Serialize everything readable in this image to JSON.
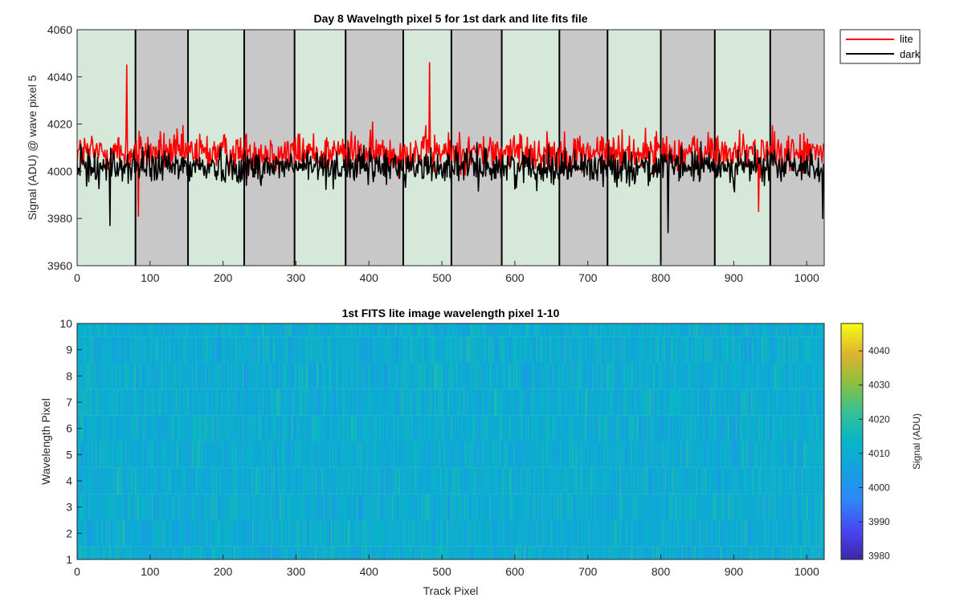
{
  "chart_data": [
    {
      "type": "line",
      "title": "Day 8 Wavelngth pixel 5 for 1st dark and lite fits file",
      "xlabel": "",
      "ylabel": "Signal (ADU) @ wave pixel 5",
      "xlim": [
        0,
        1024
      ],
      "ylim": [
        3960,
        4060
      ],
      "xticks": [
        0,
        100,
        200,
        300,
        400,
        500,
        600,
        700,
        800,
        900,
        1000
      ],
      "yticks": [
        3960,
        3980,
        4000,
        4020,
        4040,
        4060
      ],
      "grid": false,
      "legend": "outside-top-right",
      "bands": [
        {
          "start": 0,
          "end": 80,
          "color": "#d5e8d9"
        },
        {
          "start": 80,
          "end": 152,
          "color": "#c8c8c8"
        },
        {
          "start": 152,
          "end": 229,
          "color": "#d5e8d9"
        },
        {
          "start": 229,
          "end": 298,
          "color": "#c8c8c8"
        },
        {
          "start": 298,
          "end": 368,
          "color": "#d5e8d9"
        },
        {
          "start": 368,
          "end": 447,
          "color": "#c8c8c8"
        },
        {
          "start": 447,
          "end": 513,
          "color": "#d5e8d9"
        },
        {
          "start": 513,
          "end": 582,
          "color": "#c8c8c8"
        },
        {
          "start": 582,
          "end": 661,
          "color": "#d5e8d9"
        },
        {
          "start": 661,
          "end": 727,
          "color": "#c8c8c8"
        },
        {
          "start": 727,
          "end": 800,
          "color": "#d5e8d9"
        },
        {
          "start": 800,
          "end": 874,
          "color": "#c8c8c8"
        },
        {
          "start": 874,
          "end": 950,
          "color": "#d5e8d9"
        },
        {
          "start": 950,
          "end": 1024,
          "color": "#c8c8c8"
        }
      ],
      "series": [
        {
          "name": "lite",
          "color": "#ff0000",
          "x_range": [
            0,
            1024
          ],
          "mean": 4008,
          "spread": 8,
          "peaks": [
            {
              "x": 68,
              "y": 4045
            },
            {
              "x": 483,
              "y": 4046
            },
            {
              "x": 84,
              "y": 3981
            },
            {
              "x": 934,
              "y": 3983
            }
          ],
          "values_note": ""
        },
        {
          "name": "dark",
          "color": "#000000",
          "x_range": [
            0,
            1024
          ],
          "mean": 4002,
          "spread": 7,
          "peaks": [
            {
              "x": 45,
              "y": 3977
            },
            {
              "x": 810,
              "y": 3974
            },
            {
              "x": 1022,
              "y": 3980
            }
          ]
        }
      ]
    },
    {
      "type": "heatmap",
      "title": "1st FITS lite image wavelength pixel 1-10",
      "xlabel": "Track Pixel",
      "ylabel": "Wavelength Pixel",
      "xlim": [
        0,
        1024
      ],
      "ylim": [
        1,
        10
      ],
      "xticks": [
        0,
        100,
        200,
        300,
        400,
        500,
        600,
        700,
        800,
        900,
        1000
      ],
      "yticks": [
        1,
        2,
        3,
        4,
        5,
        6,
        7,
        8,
        9,
        10
      ],
      "rows": 10,
      "columns": 1024,
      "colormap": "parula",
      "colorbar": {
        "label": "Signal (ADU)",
        "range": [
          3979,
          4048
        ],
        "ticks": [
          3980,
          3990,
          4000,
          4010,
          4020,
          4030,
          4040
        ]
      }
    }
  ],
  "legend": {
    "items": [
      {
        "label": "lite",
        "color": "#ff0000"
      },
      {
        "label": "dark",
        "color": "#000000"
      }
    ]
  }
}
